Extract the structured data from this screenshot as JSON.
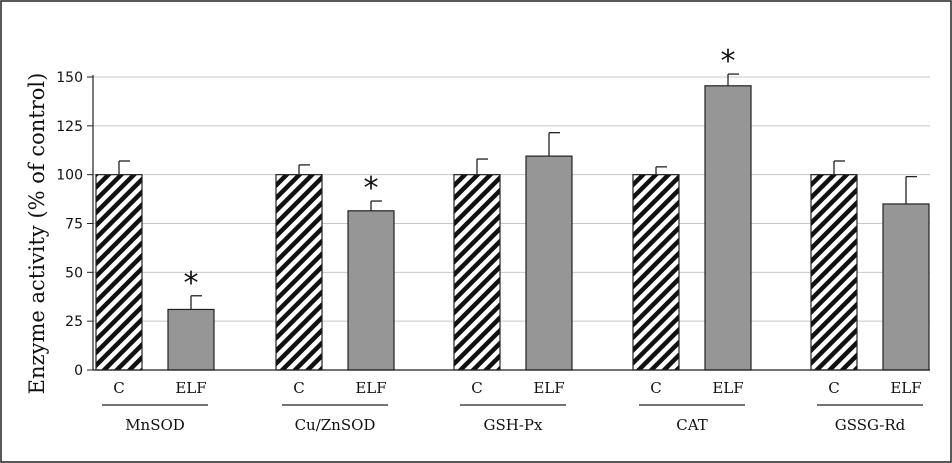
{
  "chart_data": {
    "type": "bar",
    "ylabel": "Enzyme activity (% of control)",
    "ylim": [
      0,
      150
    ],
    "yticks": [
      0,
      25,
      50,
      75,
      100,
      125,
      150
    ],
    "grid": true,
    "conditions": [
      "C",
      "ELF"
    ],
    "groups": [
      {
        "name": "MnSOD",
        "values": [
          100,
          31
        ],
        "errors": [
          7,
          7
        ],
        "significant": [
          false,
          true
        ]
      },
      {
        "name": "Cu/ZnSOD",
        "values": [
          100,
          81.5
        ],
        "errors": [
          5,
          5
        ],
        "significant": [
          false,
          true
        ]
      },
      {
        "name": "GSH-Px",
        "values": [
          100,
          109.5
        ],
        "errors": [
          8,
          12
        ],
        "significant": [
          false,
          false
        ]
      },
      {
        "name": "CAT",
        "values": [
          100,
          145.5
        ],
        "errors": [
          4,
          6
        ],
        "significant": [
          false,
          true
        ]
      },
      {
        "name": "GSSG-Rd",
        "values": [
          100,
          85
        ],
        "errors": [
          7,
          14
        ],
        "significant": [
          false,
          false
        ]
      }
    ],
    "significance_marker": "*",
    "colors": {
      "control_pattern": "#111111",
      "elf_fill": "#969696",
      "grid": "#c8c8c8"
    }
  }
}
